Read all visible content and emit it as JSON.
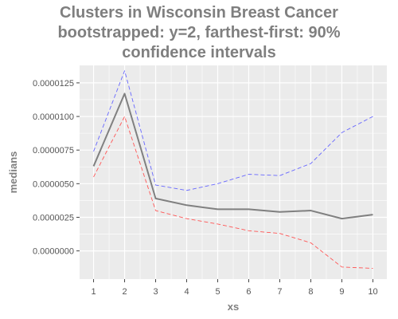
{
  "chart_data": {
    "type": "line",
    "title_lines": [
      "Clusters in Wisconsin Breast Cancer",
      "bootstrapped: y=2, farthest-first: 90%",
      "confidence intervals"
    ],
    "xlabel": "xs",
    "ylabel": "medians",
    "x": [
      1,
      2,
      3,
      4,
      5,
      6,
      7,
      8,
      9,
      10
    ],
    "x_tick_labels": [
      "1",
      "2",
      "3",
      "4",
      "5",
      "6",
      "7",
      "8",
      "9",
      "10"
    ],
    "y_ticks": [
      0.0,
      2.5e-06,
      5e-06,
      7.5e-06,
      1e-05,
      1.25e-05
    ],
    "y_tick_labels": [
      "0.0000000",
      "0.0000025",
      "0.0000050",
      "0.0000075",
      "0.0000100",
      "0.0000125"
    ],
    "xlim": [
      0.55,
      10.45
    ],
    "ylim": [
      -2.1e-06,
      1.38e-05
    ],
    "grid": true,
    "background_color": "#ebebeb",
    "grid_color": "#ffffff",
    "series": [
      {
        "role": "upper",
        "values": [
          7.4e-06,
          1.34e-05,
          4.9e-06,
          4.5e-06,
          5e-06,
          5.7e-06,
          5.6e-06,
          6.5e-06,
          8.8e-06,
          1e-05
        ],
        "color": "#6666ff",
        "dashed": true
      },
      {
        "role": "median",
        "values": [
          6.3e-06,
          1.17e-05,
          3.9e-06,
          3.4e-06,
          3.1e-06,
          3.1e-06,
          2.9e-06,
          3e-06,
          2.4e-06,
          2.7e-06
        ],
        "color": "#808080",
        "dashed": false
      },
      {
        "role": "lower",
        "values": [
          5.5e-06,
          1e-05,
          3e-06,
          2.4e-06,
          2e-06,
          1.5e-06,
          1.3e-06,
          6e-07,
          -1.2e-06,
          -1.3e-06
        ],
        "color": "#ff5555",
        "dashed": true
      }
    ]
  }
}
